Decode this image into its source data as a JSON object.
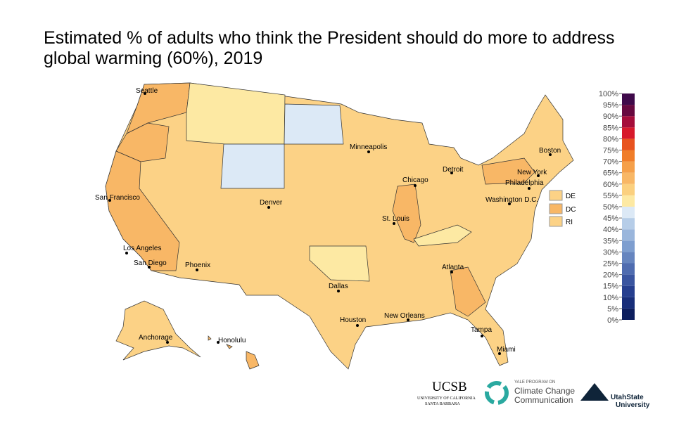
{
  "title": [
    "Estimated % of adults who think the President should do more to address",
    "global warming (60%), 2019"
  ],
  "cities": [
    "Seattle",
    "San Francisco",
    "Los Angeles",
    "San Diego",
    "Phoenix",
    "Denver",
    "Minneapolis",
    "Chicago",
    "Detroit",
    "St. Louis",
    "Dallas",
    "Houston",
    "New Orleans",
    "Atlanta",
    "Tampa",
    "Miami",
    "Washington D.C.",
    "Philadelphia",
    "New York",
    "Boston",
    "Anchorage",
    "Honolulu"
  ],
  "small_states": [
    "DE",
    "DC",
    "RI"
  ],
  "legend": {
    "ylim": [
      0,
      100
    ],
    "ticks": [
      {
        "value": 0,
        "label": "0%"
      },
      {
        "value": 5,
        "label": "5%"
      },
      {
        "value": 10,
        "label": "10%"
      },
      {
        "value": 15,
        "label": "15%"
      },
      {
        "value": 20,
        "label": "20%"
      },
      {
        "value": 25,
        "label": "25%"
      },
      {
        "value": 30,
        "label": "30%"
      },
      {
        "value": 35,
        "label": "35%"
      },
      {
        "value": 40,
        "label": "40%"
      },
      {
        "value": 45,
        "label": "45%"
      },
      {
        "value": 50,
        "label": "50%"
      },
      {
        "value": 55,
        "label": "55%"
      },
      {
        "value": 60,
        "label": "60%"
      },
      {
        "value": 65,
        "label": "65%"
      },
      {
        "value": 70,
        "label": "70%"
      },
      {
        "value": 75,
        "label": "75%"
      },
      {
        "value": 80,
        "label": "80%"
      },
      {
        "value": 85,
        "label": "85%"
      },
      {
        "value": 90,
        "label": "90%"
      },
      {
        "value": 95,
        "label": "95%"
      },
      {
        "value": 100,
        "label": "100%"
      }
    ],
    "colors": [
      "#0d1e5e",
      "#182e7a",
      "#263f8f",
      "#3a55a0",
      "#4f6cb0",
      "#6685bf",
      "#7e9ecf",
      "#9ab6dc",
      "#b6cde8",
      "#dce9f6",
      "#fde9a3",
      "#fbd07f",
      "#f8b766",
      "#f5a04a",
      "#f07d29",
      "#e8531f",
      "#d7192b",
      "#a50d3a",
      "#67093f",
      "#3f0a4a"
    ]
  },
  "logos": {
    "ucsb": "UCSB",
    "ucsb_sub": [
      "UNIVERSITY OF CALIFORNIA",
      "SANTA BARBARA"
    ],
    "yale_top": "YALE PROGRAM ON",
    "yale": [
      "Climate Change",
      "Communication"
    ],
    "usu": [
      "UtahState",
      "University"
    ]
  }
}
